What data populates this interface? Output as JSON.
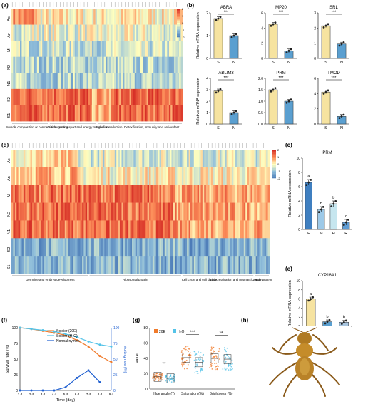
{
  "panels": {
    "a": {
      "label": "(a)"
    },
    "b": {
      "label": "(b)"
    },
    "c": {
      "label": "(c)"
    },
    "d": {
      "label": "(d)"
    },
    "e": {
      "label": "(e)"
    },
    "f": {
      "label": "(f)"
    },
    "g": {
      "label": "(g)"
    },
    "h": {
      "label": "(h)"
    }
  },
  "colors": {
    "bar_S": "#f6e3a0",
    "bar_N": "#5a9fd0",
    "hot": "#d73027",
    "cold": "#4575b4",
    "soldier20E": "#f07a2a",
    "soldierH2O": "#54c3e8",
    "nymph": "#1f5fd0"
  },
  "chart_data": [
    {
      "id": "a",
      "type": "heatmap",
      "rows": [
        "As",
        "An",
        "M",
        "N2",
        "N1",
        "S2",
        "S1"
      ],
      "groups": [
        "Muscle composition or contraction",
        "Cuticle tanning",
        "Sugar transport and energy metabolism",
        "Signal transduction",
        "Detoxification, immunity and antioxidant"
      ],
      "scale_ticks": [
        "2",
        "1",
        "0",
        "-1",
        "-2"
      ]
    },
    {
      "id": "b",
      "type": "bar",
      "ylabel": "Relative mRNA expression",
      "categories": [
        "S",
        "N"
      ],
      "sig": "***",
      "subplots": [
        {
          "title": "ABRA",
          "values": [
            1.75,
            1.0
          ],
          "ylim": [
            0,
            2
          ],
          "yticks": [
            "0",
            "1",
            "2"
          ]
        },
        {
          "title": "MP20",
          "values": [
            4.5,
            1.0
          ],
          "ylim": [
            0,
            6
          ],
          "yticks": [
            "0",
            "2",
            "4",
            "6"
          ]
        },
        {
          "title": "SRL",
          "values": [
            2.15,
            0.95
          ],
          "ylim": [
            0,
            3
          ],
          "yticks": [
            "0",
            "1",
            "2",
            "3"
          ]
        },
        {
          "title": "ABLIM3",
          "values": [
            2.9,
            1.0
          ],
          "ylim": [
            0,
            4
          ],
          "yticks": [
            "0",
            "1",
            "2",
            "3",
            "4"
          ]
        },
        {
          "title": "PRM",
          "values": [
            1.5,
            1.0
          ],
          "ylim": [
            0,
            2
          ],
          "yticks": [
            "0.0",
            "0.5",
            "1.0",
            "1.5",
            "2.0"
          ]
        },
        {
          "title": "TMOD",
          "values": [
            4.2,
            1.0
          ],
          "ylim": [
            0,
            6
          ],
          "yticks": [
            "0",
            "2",
            "4",
            "6"
          ]
        }
      ]
    },
    {
      "id": "c",
      "type": "bar",
      "title": "PRM",
      "ylabel": "Relative mRNA expression",
      "categories": [
        "F",
        "M",
        "H",
        "R"
      ],
      "values": [
        6.6,
        2.8,
        3.6,
        1.0
      ],
      "letters": [
        "a",
        "b",
        "b",
        "c"
      ],
      "ylim": [
        0,
        10
      ],
      "yticks": [
        "0",
        "2",
        "4",
        "6",
        "8",
        "10"
      ]
    },
    {
      "id": "d",
      "type": "heatmap",
      "rows": [
        "As",
        "An",
        "M",
        "N2",
        "N1",
        "S2",
        "S1"
      ],
      "groups": [
        "Germline and embryo development",
        "Ribosomal protein",
        "Cell cycle and cell division",
        "DNA replication and mismatch repair",
        "Cuticle protein"
      ],
      "scale_ticks": [
        "2",
        "1",
        "0",
        "-1",
        "-2"
      ]
    },
    {
      "id": "e",
      "type": "bar",
      "title": "CYP18A1",
      "ylabel": "Relative mRNA expression",
      "categories": [
        "S",
        "N",
        "A"
      ],
      "values": [
        6.0,
        1.0,
        0.9
      ],
      "letters": [
        "a",
        "b",
        "b"
      ],
      "ylim": [
        0,
        10
      ],
      "yticks": [
        "0",
        "2",
        "4",
        "6",
        "8",
        "10"
      ]
    },
    {
      "id": "f",
      "type": "line",
      "xlabel": "Time (day)",
      "ylabel": "Survival rate (%)",
      "ylabel2": "Molting rate (%)",
      "x": [
        "1 d",
        "2 d",
        "3 d",
        "4 d",
        "5 d",
        "6 d",
        "7 d",
        "8 d",
        "9 d"
      ],
      "ylim": [
        0,
        100
      ],
      "yticks": [
        "0",
        "25",
        "50",
        "75",
        "100"
      ],
      "series": [
        {
          "name": "Soldier (20E)",
          "axis": "left",
          "values": [
            100,
            98,
            95,
            92,
            88,
            80,
            70,
            55,
            45
          ]
        },
        {
          "name": "Soldier (H₂O)",
          "axis": "left",
          "values": [
            100,
            98,
            96,
            94,
            90,
            85,
            78,
            73,
            70
          ]
        },
        {
          "name": "Normal nymph",
          "axis": "right",
          "values": [
            0,
            0,
            0,
            0,
            5,
            20,
            32,
            13,
            null
          ]
        }
      ]
    },
    {
      "id": "g",
      "type": "scatter",
      "ylabel": "Value",
      "categories": [
        "Hue angle (°)",
        "Saturation (%)",
        "Brightness (%)"
      ],
      "legend": [
        "20E",
        "H₂O"
      ],
      "ylim": [
        0,
        80
      ],
      "yticks": [
        "0",
        "20",
        "40",
        "60",
        "80"
      ],
      "sig": [
        "**",
        "***",
        "**"
      ],
      "series": [
        {
          "name": "20E",
          "medians": [
            16,
            41,
            40
          ]
        },
        {
          "name": "H₂O",
          "medians": [
            14,
            35,
            39
          ]
        }
      ]
    }
  ]
}
